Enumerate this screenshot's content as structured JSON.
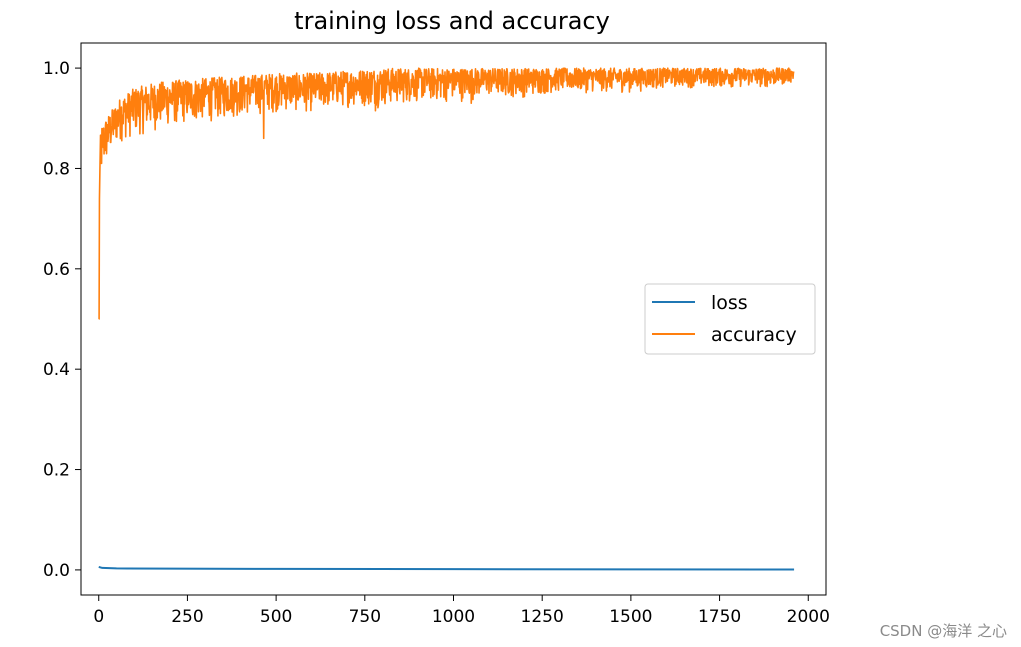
{
  "chart_data": {
    "type": "line",
    "title": "training loss and accuracy",
    "xlabel": "",
    "ylabel": "",
    "xlim": [
      -50,
      2050
    ],
    "ylim": [
      -0.05,
      1.05
    ],
    "xticks": [
      0,
      250,
      500,
      750,
      1000,
      1250,
      1500,
      1750,
      2000
    ],
    "xtick_labels": [
      "0",
      "250",
      "500",
      "750",
      "1000",
      "1250",
      "1500",
      "1750",
      "2000"
    ],
    "yticks": [
      0.0,
      0.2,
      0.4,
      0.6,
      0.8,
      1.0
    ],
    "ytick_labels": [
      "0.0",
      "0.2",
      "0.4",
      "0.6",
      "0.8",
      "1.0"
    ],
    "grid": false,
    "legend_position": "center-right",
    "series": [
      {
        "name": "loss",
        "color": "#1f77b4",
        "points": [
          [
            0,
            0.006
          ],
          [
            10,
            0.004
          ],
          [
            50,
            0.003
          ],
          [
            200,
            0.0025
          ],
          [
            500,
            0.002
          ],
          [
            1000,
            0.0015
          ],
          [
            1500,
            0.001
          ],
          [
            1960,
            0.0008
          ]
        ]
      },
      {
        "name": "accuracy",
        "color": "#ff7f0e",
        "n_points": 1960,
        "envelope_x": [
          0,
          3,
          6,
          10,
          20,
          40,
          60,
          100,
          150,
          200,
          300,
          400,
          500,
          600,
          700,
          800,
          900,
          1000,
          1100,
          1200,
          1300,
          1400,
          1500,
          1600,
          1700,
          1800,
          1900,
          1960
        ],
        "envelope_low": [
          0.5,
          0.73,
          0.76,
          0.78,
          0.8,
          0.83,
          0.85,
          0.86,
          0.87,
          0.88,
          0.89,
          0.9,
          0.91,
          0.91,
          0.92,
          0.92,
          0.93,
          0.93,
          0.94,
          0.94,
          0.95,
          0.95,
          0.95,
          0.96,
          0.96,
          0.96,
          0.96,
          0.97
        ],
        "envelope_high": [
          0.5,
          0.84,
          0.88,
          0.89,
          0.9,
          0.92,
          0.94,
          0.96,
          0.97,
          0.975,
          0.98,
          0.985,
          0.99,
          0.99,
          0.995,
          1.0,
          1.0,
          1.0,
          1.0,
          1.0,
          1.0,
          1.0,
          1.0,
          1.0,
          1.0,
          1.0,
          1.0,
          1.0
        ],
        "dips": [
          [
            1,
            0.5
          ],
          [
            2,
            0.74
          ],
          [
            465,
            0.86
          ],
          [
            780,
            0.915
          ],
          [
            1050,
            0.93
          ]
        ]
      }
    ]
  },
  "watermark": "CSDN @海洋 之心"
}
